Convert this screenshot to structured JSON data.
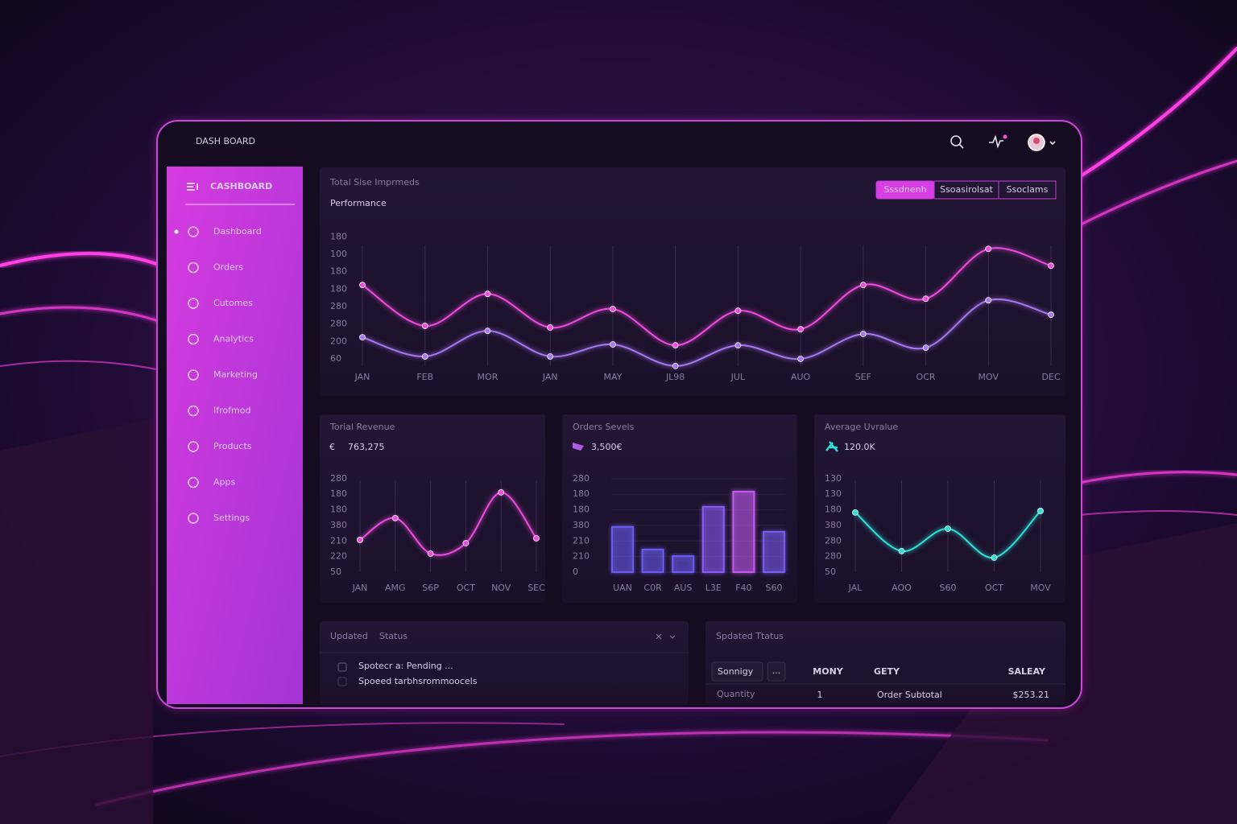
{
  "header": {
    "title": "DASH BOARD"
  },
  "sidebar": {
    "title": "CASHBOARD",
    "items": [
      "Dashboard",
      "Orders",
      "Cutomes",
      "Analytics",
      "Marketing",
      "Ifrofmod",
      "Products",
      "Apps",
      "Settings"
    ]
  },
  "performance": {
    "subtitle": "Total Sise Imprmeds",
    "title": "Performance",
    "tabs": [
      "Sssdnenh",
      "Ssoasirolsat",
      "Ssoclams"
    ],
    "chart": {
      "type": "line",
      "categories": [
        "JAN",
        "FEB",
        "MOR",
        "JAN",
        "MAY",
        "JL98",
        "JUL",
        "AUO",
        "SEF",
        "OCR",
        "MOV",
        "DEC"
      ],
      "series": [
        {
          "color": "#f04ce0",
          "values": [
            4.24,
            1.89,
            3.73,
            1.8,
            2.86,
            0.78,
            2.76,
            1.7,
            4.24,
            3.45,
            6.31,
            5.34
          ]
        },
        {
          "color": "#a877f2",
          "values": [
            1.24,
            0.14,
            1.61,
            0.14,
            0.83,
            -0.41,
            0.78,
            0,
            1.43,
            0.64,
            3.36,
            2.53
          ]
        }
      ],
      "ylim": [
        -0.6,
        7.2
      ],
      "yticks": [
        {
          "value": 7,
          "label": "180"
        },
        {
          "value": 6,
          "label": "100"
        },
        {
          "value": 5,
          "label": "180"
        },
        {
          "value": 4,
          "label": "180"
        },
        {
          "value": 3,
          "label": "280"
        },
        {
          "value": 2,
          "label": "280"
        },
        {
          "value": 1,
          "label": "200"
        },
        {
          "value": 0,
          "label": "60"
        }
      ],
      "grid": true
    }
  },
  "cards": [
    {
      "title": "Torial Revenue",
      "prefix": "€",
      "value": "763,275",
      "chart": {
        "type": "line",
        "categories": [
          "JAN",
          "AMG",
          "S6P",
          "OCT",
          "NOV",
          "SEC"
        ],
        "color": "#f04ce0",
        "values": [
          2.07,
          3.47,
          1.19,
          1.86,
          5.12,
          2.17
        ],
        "ylim": [
          0,
          6.2
        ],
        "yticks": [
          {
            "value": 6,
            "label": "280"
          },
          {
            "value": 5,
            "label": "180"
          },
          {
            "value": 4,
            "label": "180"
          },
          {
            "value": 3,
            "label": "380"
          },
          {
            "value": 2,
            "label": "210"
          },
          {
            "value": 1,
            "label": "220"
          },
          {
            "value": 0,
            "label": "50"
          }
        ],
        "grid": true
      }
    },
    {
      "title": "Orders Sevels",
      "value": "3,500€",
      "chart": {
        "type": "bar",
        "categories": [
          "UAN",
          "C0R",
          "AUS",
          "L3E",
          "F40",
          "S60"
        ],
        "colors": [
          "#6a5cf0",
          "#6a5cf0",
          "#6a5cf0",
          "#8a5cf5",
          "#c25af0",
          "#7a5cf0"
        ],
        "values": [
          2.9,
          1.45,
          1.03,
          4.19,
          5.17,
          2.59
        ],
        "ylim": [
          0,
          6.2
        ],
        "yticks": [
          {
            "value": 6,
            "label": "280"
          },
          {
            "value": 5,
            "label": "180"
          },
          {
            "value": 4,
            "label": "180"
          },
          {
            "value": 3,
            "label": "380"
          },
          {
            "value": 2,
            "label": "210"
          },
          {
            "value": 1,
            "label": "210"
          },
          {
            "value": 0,
            "label": "0"
          }
        ],
        "grid": true
      }
    },
    {
      "title": "Average Uvralue",
      "value": "120.0K",
      "chart": {
        "type": "line",
        "categories": [
          "JAL",
          "AOO",
          "S60",
          "OCT",
          "MOV"
        ],
        "color": "#2de0d8",
        "values": [
          3.83,
          1.35,
          2.79,
          0.93,
          3.93
        ],
        "ylim": [
          0,
          6.2
        ],
        "yticks": [
          {
            "value": 6,
            "label": "130"
          },
          {
            "value": 5,
            "label": "130"
          },
          {
            "value": 4,
            "label": "180"
          },
          {
            "value": 3,
            "label": "380"
          },
          {
            "value": 2,
            "label": "280"
          },
          {
            "value": 1,
            "label": "280"
          },
          {
            "value": 0,
            "label": "50"
          }
        ],
        "grid": true
      }
    }
  ],
  "status_panel": {
    "headers": [
      "Updated",
      "Status"
    ],
    "rows": [
      "Spotecr a: Pending ...",
      "Spoeed tarbhsrommoocels"
    ]
  },
  "summary_panel": {
    "title": "Spdated Ttatus",
    "filter": "Sonnigy",
    "more": "...",
    "columns": [
      "MONY",
      "GETY",
      "SALEAY"
    ],
    "row": [
      "Quantity",
      "1",
      "Order Subtotal",
      "$253.21"
    ]
  }
}
